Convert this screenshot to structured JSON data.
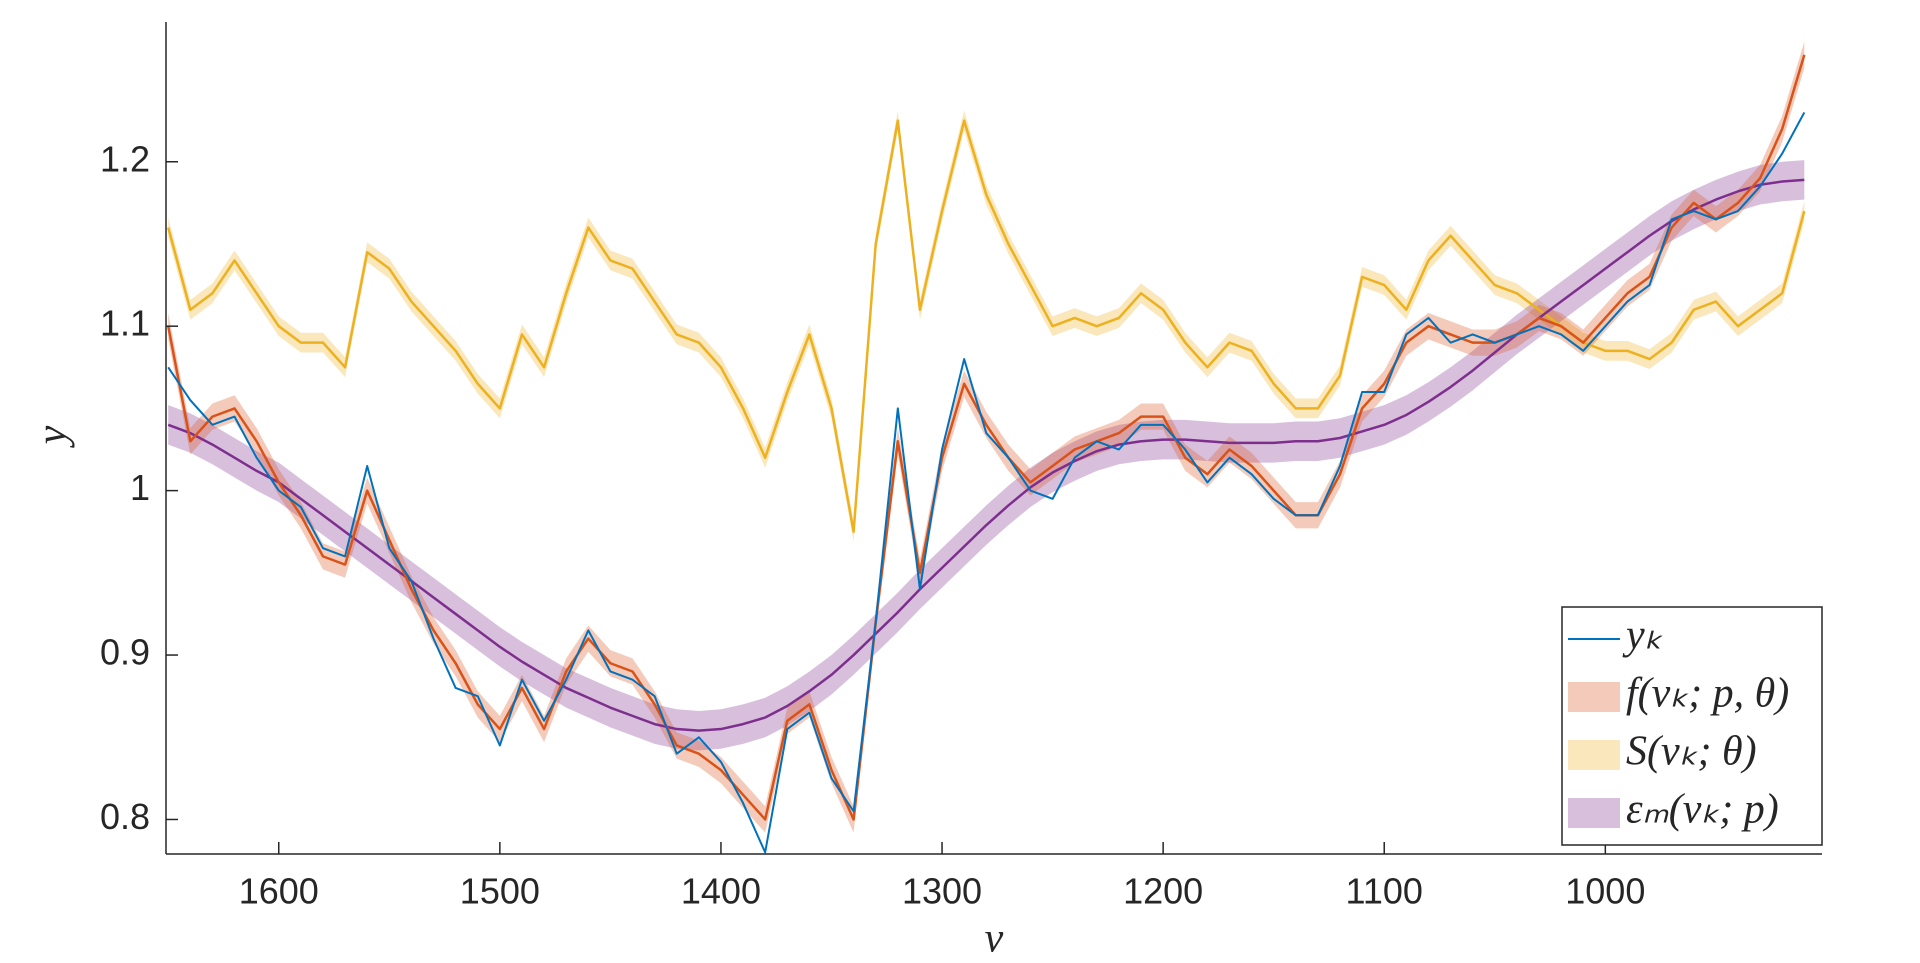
{
  "chart_data": {
    "type": "line",
    "x_label": "ν",
    "y_label": "y",
    "xlim": [
      1651,
      902
    ],
    "ylim": [
      0.779,
      1.285
    ],
    "xticks": [
      1600,
      1500,
      1400,
      1300,
      1200,
      1100,
      1000
    ],
    "yticks": [
      0.8,
      0.9,
      1,
      1.1,
      1.2
    ],
    "legend": "southeast",
    "x": [
      1650,
      1640,
      1630,
      1620,
      1610,
      1600,
      1590,
      1580,
      1570,
      1560,
      1550,
      1540,
      1530,
      1520,
      1510,
      1500,
      1490,
      1480,
      1470,
      1460,
      1450,
      1440,
      1430,
      1420,
      1410,
      1400,
      1390,
      1380,
      1370,
      1360,
      1350,
      1340,
      1330,
      1320,
      1310,
      1300,
      1290,
      1280,
      1270,
      1260,
      1250,
      1240,
      1230,
      1220,
      1210,
      1200,
      1190,
      1180,
      1170,
      1160,
      1150,
      1140,
      1130,
      1120,
      1110,
      1100,
      1090,
      1080,
      1070,
      1060,
      1050,
      1040,
      1030,
      1020,
      1010,
      1000,
      990,
      980,
      970,
      960,
      950,
      940,
      930,
      920,
      910
    ],
    "series": [
      {
        "name": "yₖ",
        "color": "#0072bd",
        "values": [
          1.075,
          1.055,
          1.04,
          1.045,
          1.02,
          1.0,
          0.99,
          0.965,
          0.96,
          1.015,
          0.965,
          0.945,
          0.91,
          0.88,
          0.875,
          0.845,
          0.885,
          0.86,
          0.885,
          0.915,
          0.89,
          0.885,
          0.875,
          0.84,
          0.85,
          0.835,
          0.81,
          0.78,
          0.855,
          0.865,
          0.825,
          0.805,
          0.92,
          1.05,
          0.94,
          1.025,
          1.08,
          1.035,
          1.02,
          1.0,
          0.995,
          1.02,
          1.03,
          1.025,
          1.04,
          1.04,
          1.025,
          1.005,
          1.02,
          1.01,
          0.995,
          0.985,
          0.985,
          1.015,
          1.06,
          1.06,
          1.095,
          1.105,
          1.09,
          1.095,
          1.09,
          1.095,
          1.1,
          1.095,
          1.085,
          1.1,
          1.115,
          1.125,
          1.165,
          1.17,
          1.165,
          1.17,
          1.185,
          1.205,
          1.23
        ]
      },
      {
        "name": "f(νₖ; p, θ)",
        "color": "#d95319",
        "band": 0.008,
        "values": [
          1.1,
          1.03,
          1.045,
          1.05,
          1.03,
          1.005,
          0.985,
          0.96,
          0.955,
          1.0,
          0.97,
          0.94,
          0.915,
          0.895,
          0.87,
          0.855,
          0.88,
          0.855,
          0.89,
          0.91,
          0.895,
          0.89,
          0.87,
          0.845,
          0.84,
          0.83,
          0.815,
          0.8,
          0.86,
          0.87,
          0.83,
          0.8,
          0.92,
          1.03,
          0.95,
          1.02,
          1.065,
          1.04,
          1.02,
          1.005,
          1.015,
          1.025,
          1.03,
          1.035,
          1.045,
          1.045,
          1.02,
          1.01,
          1.025,
          1.015,
          1.0,
          0.985,
          0.985,
          1.01,
          1.05,
          1.065,
          1.09,
          1.1,
          1.095,
          1.09,
          1.09,
          1.095,
          1.105,
          1.1,
          1.09,
          1.105,
          1.12,
          1.13,
          1.16,
          1.175,
          1.165,
          1.175,
          1.19,
          1.22,
          1.265
        ]
      },
      {
        "name": "S(νₖ; θ)",
        "color": "#edb120",
        "band": 0.006,
        "values": [
          1.16,
          1.11,
          1.12,
          1.14,
          1.12,
          1.1,
          1.09,
          1.09,
          1.075,
          1.145,
          1.135,
          1.115,
          1.1,
          1.085,
          1.065,
          1.05,
          1.095,
          1.075,
          1.12,
          1.16,
          1.14,
          1.135,
          1.115,
          1.095,
          1.09,
          1.075,
          1.05,
          1.02,
          1.06,
          1.095,
          1.05,
          0.975,
          1.15,
          1.225,
          1.11,
          1.17,
          1.225,
          1.18,
          1.15,
          1.125,
          1.1,
          1.105,
          1.1,
          1.105,
          1.12,
          1.11,
          1.09,
          1.075,
          1.09,
          1.085,
          1.065,
          1.05,
          1.05,
          1.07,
          1.13,
          1.125,
          1.11,
          1.14,
          1.155,
          1.14,
          1.125,
          1.12,
          1.11,
          1.1,
          1.09,
          1.085,
          1.085,
          1.08,
          1.09,
          1.11,
          1.115,
          1.1,
          1.11,
          1.12,
          1.17
        ]
      },
      {
        "name": "εₘ(νₖ; p)",
        "color": "#7e2f8e",
        "band": 0.012,
        "values": [
          1.04,
          1.035,
          1.028,
          1.02,
          1.012,
          1.005,
          0.995,
          0.985,
          0.975,
          0.965,
          0.955,
          0.945,
          0.935,
          0.925,
          0.915,
          0.905,
          0.896,
          0.888,
          0.88,
          0.874,
          0.868,
          0.863,
          0.858,
          0.855,
          0.854,
          0.855,
          0.858,
          0.862,
          0.869,
          0.878,
          0.888,
          0.9,
          0.913,
          0.926,
          0.94,
          0.953,
          0.966,
          0.979,
          0.991,
          1.002,
          1.011,
          1.018,
          1.024,
          1.028,
          1.03,
          1.031,
          1.031,
          1.03,
          1.029,
          1.029,
          1.029,
          1.03,
          1.03,
          1.032,
          1.036,
          1.04,
          1.046,
          1.054,
          1.063,
          1.073,
          1.084,
          1.095,
          1.105,
          1.115,
          1.125,
          1.135,
          1.145,
          1.155,
          1.164,
          1.171,
          1.177,
          1.182,
          1.186,
          1.188,
          1.189
        ]
      }
    ]
  }
}
